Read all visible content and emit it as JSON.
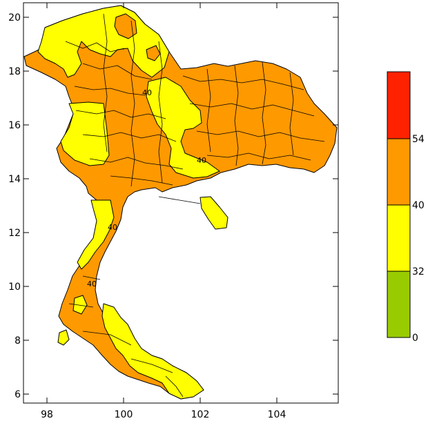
{
  "map": {
    "x_ticks": [
      "98",
      "100",
      "102",
      "104"
    ],
    "y_ticks": [
      "20",
      "18",
      "16",
      "14",
      "12",
      "10",
      "8",
      "6"
    ],
    "contour_labels": [
      "40",
      "40",
      "40",
      "40"
    ]
  },
  "legend": {
    "classes": [
      {
        "min": 0,
        "max": 32,
        "color": "#99cc00"
      },
      {
        "min": 32,
        "max": 40,
        "color": "#ffff00"
      },
      {
        "min": 40,
        "max": 54,
        "color": "#ff9900"
      },
      {
        "min": 54,
        "max": null,
        "color": "#ff2200"
      }
    ],
    "tick_labels": [
      "0",
      "32",
      "40",
      "54"
    ]
  }
}
